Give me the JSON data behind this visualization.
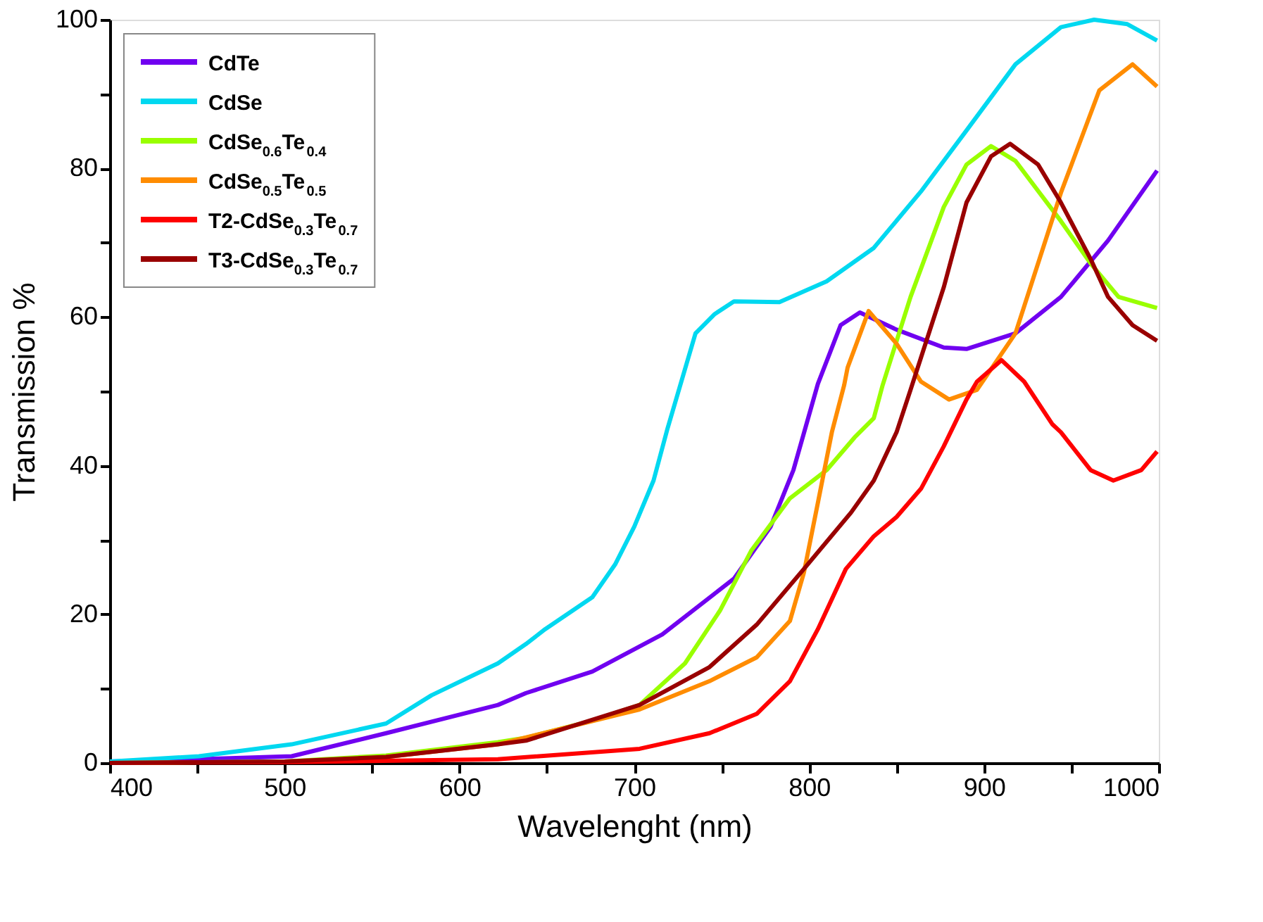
{
  "chart_data": {
    "type": "line",
    "xlabel": "Wavelenght (nm)",
    "ylabel": "Transmission %",
    "xlim": [
      400,
      1000
    ],
    "ylim": [
      0,
      100
    ],
    "xticks": [
      400,
      {
        "value": 450,
        "label": null
      },
      500,
      {
        "value": 550,
        "label": null
      },
      600,
      {
        "value": 650,
        "label": null
      },
      700,
      {
        "value": 750,
        "label": null
      },
      800,
      {
        "value": 850,
        "label": null
      },
      900,
      {
        "value": 950,
        "label": null
      },
      1000
    ],
    "yticks": [
      0,
      {
        "value": 10,
        "label": null
      },
      20,
      {
        "value": 30,
        "label": null
      },
      40,
      {
        "value": 50,
        "label": null
      },
      60,
      {
        "value": 70,
        "label": null
      },
      80,
      {
        "value": 90,
        "label": null
      },
      100
    ],
    "grid": false,
    "legend": "top left",
    "marker": "none",
    "line_style": "solid",
    "series": [
      {
        "name": "CdTe",
        "color": "#7000f0",
        "x": [
          400,
          450,
          504,
          558,
          622,
          638,
          676,
          716,
          757,
          778,
          791,
          805,
          818,
          829,
          850,
          877,
          890,
          918,
          944,
          971,
          999
        ],
        "values": [
          0.2,
          0.5,
          0.9,
          4,
          7.8,
          9.4,
          12.3,
          17.3,
          24.8,
          31.8,
          39.4,
          51,
          58.9,
          60.6,
          58.3,
          55.9,
          55.7,
          57.8,
          62.7,
          70.3,
          79.7
        ]
      },
      {
        "name": "CdSe",
        "color": "#00d8f0",
        "x": [
          400,
          451,
          504,
          558,
          584,
          622,
          638,
          649,
          676,
          689,
          700,
          711,
          719,
          735,
          746,
          757,
          783,
          810,
          837,
          864,
          890,
          918,
          944,
          963,
          982,
          999
        ],
        "values": [
          0.2,
          0.9,
          2.5,
          5.3,
          9.1,
          13.4,
          16,
          18,
          22.3,
          26.7,
          31.8,
          38,
          45,
          57.8,
          60.4,
          62.1,
          62,
          64.8,
          69.3,
          76.9,
          85.1,
          94,
          99,
          100,
          99.4,
          97.2
        ]
      },
      {
        "name": "CdSe$_{0.6}$Te$_{0.4}$",
        "color": "#99ff00",
        "x": [
          400,
          500,
          558,
          622,
          638,
          676,
          703,
          729,
          749,
          767,
          789,
          810,
          826,
          837,
          842,
          858,
          877,
          890,
          904,
          918,
          944,
          961,
          977,
          999
        ],
        "values": [
          0,
          0.2,
          1,
          2.8,
          3.4,
          5.7,
          7.8,
          13.4,
          20.5,
          28.6,
          35.6,
          39.4,
          43.8,
          46.4,
          50.8,
          62.7,
          74.8,
          80.5,
          83,
          81,
          72.9,
          67.2,
          62.7,
          61.2
        ]
      },
      {
        "name": "CdSe$_{0.5}$Te$_{0.5}$",
        "color": "#ff8c00",
        "x": [
          558,
          622,
          703,
          743,
          770,
          789,
          797,
          805,
          813,
          820,
          822,
          834,
          850,
          864,
          880,
          896,
          918,
          944,
          966,
          985,
          999
        ],
        "values": [
          0.8,
          2.5,
          7.2,
          11,
          14.2,
          19.1,
          25.6,
          35,
          44.5,
          50.8,
          53.2,
          60.8,
          56.4,
          51.3,
          48.9,
          50.2,
          57.8,
          76.7,
          90.5,
          94,
          91
        ]
      },
      {
        "name": "T2-CdSe$_{0.3}$Te$_{0.7}$",
        "color": "#ff0000",
        "x": [
          400,
          500,
          622,
          703,
          743,
          770,
          789,
          805,
          821,
          837,
          850,
          864,
          877,
          890,
          896,
          910,
          923,
          939,
          944,
          961,
          974,
          990,
          999
        ],
        "values": [
          0,
          0.1,
          0.5,
          1.9,
          4,
          6.6,
          11,
          18,
          26.1,
          30.5,
          33.1,
          36.9,
          42.6,
          48.9,
          51.3,
          54.2,
          51.3,
          45.6,
          44.5,
          39.4,
          38,
          39.4,
          41.9
        ]
      },
      {
        "name": "T3-CdSe$_{0.3}$Te$_{0.7}$",
        "color": "#990000",
        "x": [
          400,
          500,
          558,
          622,
          638,
          703,
          743,
          770,
          797,
          824,
          837,
          850,
          858,
          877,
          890,
          904,
          915,
          931,
          944,
          961,
          971,
          985,
          999
        ],
        "values": [
          0,
          0.2,
          0.8,
          2.5,
          3,
          7.8,
          12.9,
          18.6,
          26.1,
          33.7,
          38,
          44.5,
          50.2,
          64,
          75.4,
          81.6,
          83.3,
          80.5,
          75.4,
          67.8,
          62.7,
          58.9,
          56.8
        ]
      }
    ]
  }
}
